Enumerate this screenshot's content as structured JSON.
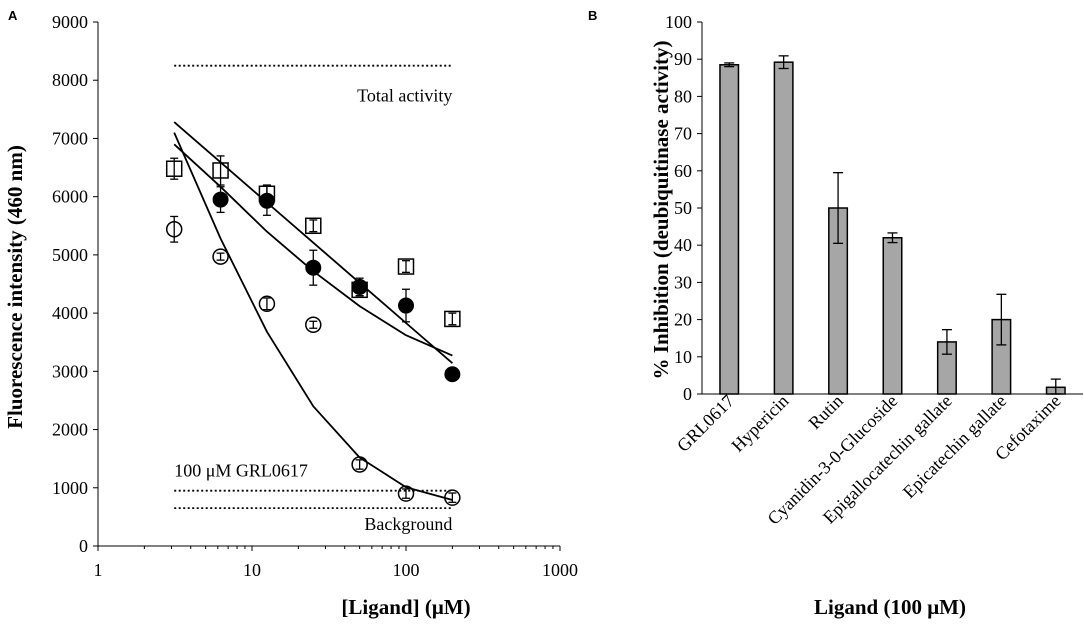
{
  "chart_data": [
    {
      "panel": "A",
      "type": "scatter",
      "xscale": "log",
      "xlabel": "[Ligand] (μM)",
      "ylabel": "Fluorescence intensity (460 nm)",
      "xlim": [
        1,
        1000
      ],
      "ylim": [
        0,
        9000
      ],
      "xticks": [
        "1",
        "10",
        "100",
        "1000"
      ],
      "yticks": [
        "0",
        "1000",
        "2000",
        "3000",
        "4000",
        "5000",
        "6000",
        "7000",
        "8000",
        "9000"
      ],
      "reference_lines": [
        {
          "name": "total-activity",
          "label": "Total activity",
          "y": 8250,
          "x": [
            3.125,
            200
          ]
        },
        {
          "name": "grl0617",
          "label": "100 μM GRL0617",
          "y": 950,
          "x": [
            3.125,
            200
          ]
        },
        {
          "name": "background",
          "label": "Background",
          "y": 650,
          "x": [
            3.125,
            200
          ]
        }
      ],
      "series": [
        {
          "name": "open-squares",
          "marker": "open-square",
          "x": [
            3.125,
            6.25,
            12.5,
            25,
            50,
            100,
            200
          ],
          "y": [
            6480,
            6450,
            6050,
            5500,
            4400,
            4800,
            3900
          ],
          "err": [
            180,
            250,
            150,
            100,
            100,
            100,
            100
          ],
          "fit_y": [
            7280,
            6590,
            5900,
            5210,
            4520,
            3830,
            3140
          ]
        },
        {
          "name": "filled-circles",
          "marker": "filled-circle",
          "x": [
            6.25,
            12.5,
            25,
            50,
            100,
            200
          ],
          "y": [
            5950,
            5930,
            4780,
            4450,
            4130,
            2950
          ],
          "err": [
            220,
            250,
            300,
            150,
            280,
            0
          ],
          "fit_y": [
            6900,
            6170,
            5400,
            4720,
            4120,
            3620,
            3270
          ]
        },
        {
          "name": "open-circles",
          "marker": "open-circle",
          "x": [
            3.125,
            6.25,
            12.5,
            25,
            50,
            100,
            200
          ],
          "y": [
            5440,
            4970,
            4160,
            3800,
            1400,
            900,
            830
          ],
          "err": [
            220,
            60,
            100,
            60,
            80,
            80,
            80
          ],
          "fit_y": [
            7100,
            5280,
            3680,
            2400,
            1520,
            1010,
            790
          ]
        }
      ],
      "fit_x": [
        3.125,
        6.25,
        12.5,
        25,
        50,
        100,
        200
      ]
    },
    {
      "panel": "B",
      "type": "bar",
      "xlabel": "Ligand (100 μM)",
      "ylabel": "% Inhibition (deubiquitinase activity)",
      "ylim": [
        0,
        100
      ],
      "yticks": [
        "0",
        "10",
        "20",
        "30",
        "40",
        "50",
        "60",
        "70",
        "80",
        "90",
        "100"
      ],
      "categories": [
        "GRL0617",
        "Hypericin",
        "Rutin",
        "Cyanidin-3-0-Glucoside",
        "Epigallocatechin gallate",
        "Epicatechin gallate",
        "Cefotaxime"
      ],
      "values": [
        88.5,
        89.2,
        50,
        42,
        14,
        20,
        1.8
      ],
      "errors": [
        0.5,
        1.7,
        9.5,
        1.3,
        3.3,
        6.8,
        2.2
      ],
      "bar_color": "#a6a6a6"
    }
  ]
}
